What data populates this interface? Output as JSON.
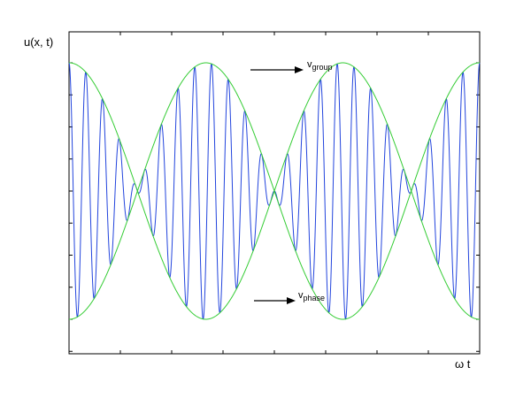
{
  "chart_data": {
    "type": "line",
    "ylabel": "u(x, t)",
    "xlabel": "ω t",
    "show_tick_labels": false,
    "grid": false,
    "xlim": [
      0,
      1
    ],
    "ylim": [
      -1.2,
      1.2
    ],
    "envelope": {
      "amplitude": 1.0,
      "cycles": 1.5,
      "color": "#33cc33"
    },
    "carrier": {
      "cycles": 24.5,
      "color": "#2244dd"
    },
    "annotations": [
      {
        "label": "v",
        "subscript": "group"
      },
      {
        "label": "v",
        "subscript": "phase"
      }
    ]
  }
}
